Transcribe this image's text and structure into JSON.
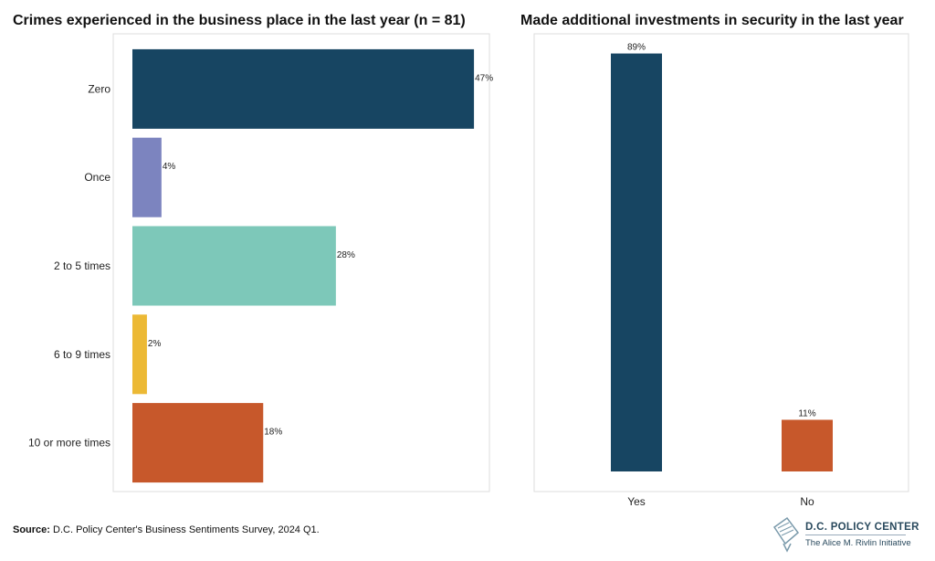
{
  "colors": {
    "navy": "#174562",
    "periwinkle": "#7c84bf",
    "teal": "#7dc8b9",
    "gold": "#ecb935",
    "orange": "#c7582b"
  },
  "chart_data": [
    {
      "type": "bar",
      "orientation": "horizontal",
      "title": "Crimes experienced in the business place in the last year (n = 81)",
      "categories": [
        "Zero",
        "Once",
        "2 to 5 times",
        "6 to 9 times",
        "10 or more times"
      ],
      "values": [
        47,
        4,
        28,
        2,
        18
      ],
      "data_labels": [
        "47%",
        "4%",
        "28%",
        "2%",
        "18%"
      ],
      "colors": [
        "#174562",
        "#7c84bf",
        "#7dc8b9",
        "#ecb935",
        "#c7582b"
      ],
      "xlim": [
        0,
        49
      ],
      "grid": false,
      "legend": "none"
    },
    {
      "type": "bar",
      "orientation": "vertical",
      "title": "Made additional investments in security in the last year",
      "categories": [
        "Yes",
        "No"
      ],
      "values": [
        89,
        11
      ],
      "data_labels": [
        "89%",
        "11%"
      ],
      "colors": [
        "#174562",
        "#c7582b"
      ],
      "ylim": [
        0,
        93
      ],
      "grid": false,
      "legend": "none"
    }
  ],
  "footer": {
    "source_label": "Source:",
    "source_text": " D.C. Policy Center's Business Sentiments Survey, 2024 Q1."
  },
  "logo": {
    "name": "D.C. POLICY CENTER",
    "tagline": "The Alice M. Rivlin Initiative",
    "icon": "capitol-map-icon"
  }
}
